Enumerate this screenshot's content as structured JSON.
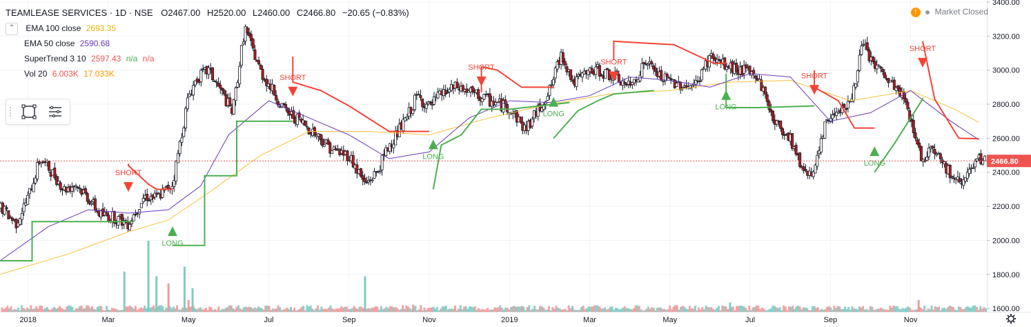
{
  "header": {
    "symbol": "TEAMLEASE SERVICES · 1D · NSE",
    "open": "O2467.00",
    "high": "H2520.00",
    "low": "L2460.00",
    "close": "C2466.80",
    "change": "−20.65 (−0.83%)"
  },
  "indicators": [
    {
      "name": "EMA 100 close",
      "values": [
        "2693.35"
      ],
      "color": "#e8b400"
    },
    {
      "name": "EMA 50 close",
      "values": [
        "2590.68"
      ],
      "color": "#673ab7"
    },
    {
      "name": "SuperTrend 3 10",
      "values": [
        "2597.43",
        "n/a",
        "n/a"
      ],
      "colors": [
        "#ef5350",
        "#4caf50",
        "#ef5350"
      ]
    },
    {
      "name": "Vol 20",
      "values": [
        "6.003K",
        "17.033K"
      ],
      "colors": [
        "#ef5350",
        "#ff9800"
      ]
    }
  ],
  "market_status": {
    "warning": "!",
    "label": "Market Closed"
  },
  "toolbar": {
    "icons": [
      "drag-handle-icon",
      "rectangle-select-icon",
      "menu-lines-icon"
    ]
  },
  "colors": {
    "up": "#26a69a",
    "down": "#ef5350",
    "candle_body_up": "#ffffff",
    "candle_border": "#131722",
    "ema100": "#f6c23e",
    "ema50": "#673ab7",
    "st_up": "#4caf50",
    "st_down": "#f44336",
    "vol_up": "#80cbc4",
    "vol_down": "#ef9a9a",
    "last_price_bg": "#ef5350"
  },
  "chart_data": {
    "type": "candlestick",
    "title": "TEAMLEASE SERVICES · 1D · NSE",
    "x_ticks": [
      "2018",
      "Mar",
      "May",
      "Jul",
      "Sep",
      "Nov",
      "2019",
      "Mar",
      "May",
      "Jul",
      "Sep",
      "Nov"
    ],
    "x_tick_months": [
      0,
      2,
      4,
      6,
      8,
      10,
      12,
      14,
      16,
      18,
      20,
      22
    ],
    "x_range_months": [
      -0.7,
      23.9
    ],
    "y_ticks": [
      "3400.00",
      "3200.00",
      "3000.00",
      "2800.00",
      "2600.00",
      "2400.00",
      "2200.00",
      "2000.00",
      "1800.00",
      "1600.00"
    ],
    "ylim": [
      1560,
      3400
    ],
    "last_price": "2466.80",
    "price_path_months": [
      -0.7,
      -0.3,
      0.0,
      0.3,
      0.6,
      0.9,
      1.2,
      1.5,
      1.8,
      2.1,
      2.5,
      2.9,
      3.2,
      3.6,
      4.0,
      4.2,
      4.5,
      4.8,
      5.1,
      5.4,
      5.8,
      6.1,
      6.4,
      6.8,
      7.2,
      7.6,
      8.0,
      8.4,
      8.7,
      9.0,
      9.4,
      9.7,
      10.0,
      10.3,
      10.7,
      11.0,
      11.5,
      12.0,
      12.4,
      12.7,
      13.0,
      13.3,
      13.6,
      13.9,
      14.2,
      14.6,
      15.0,
      15.4,
      15.8,
      16.2,
      16.6,
      17.0,
      17.4,
      17.8,
      18.2,
      18.6,
      19.0,
      19.3,
      19.6,
      19.9,
      20.2,
      20.5,
      20.8,
      21.1,
      21.5,
      21.8,
      22.1,
      22.3,
      22.5,
      22.8,
      23.1,
      23.4,
      23.7
    ],
    "price_path_values": [
      2200,
      2100,
      2250,
      2480,
      2400,
      2300,
      2330,
      2250,
      2150,
      2140,
      2100,
      2260,
      2250,
      2330,
      2850,
      2950,
      3000,
      2880,
      2750,
      3250,
      2990,
      2880,
      2760,
      2700,
      2620,
      2530,
      2500,
      2330,
      2400,
      2560,
      2700,
      2850,
      2780,
      2860,
      2900,
      2870,
      2820,
      2780,
      2650,
      2760,
      2880,
      3100,
      2920,
      2980,
      3000,
      2960,
      2900,
      3050,
      2950,
      2920,
      2900,
      3080,
      3020,
      3000,
      2960,
      2700,
      2600,
      2420,
      2400,
      2700,
      2780,
      2800,
      3150,
      3030,
      2920,
      2850,
      2640,
      2450,
      2570,
      2460,
      2340,
      2380,
      2467
    ],
    "ema100_months": [
      -0.7,
      1.0,
      2.5,
      3.5,
      4.5,
      5.8,
      7.0,
      8.5,
      10.0,
      11.5,
      13.0,
      14.5,
      16.0,
      17.5,
      19.0,
      20.5,
      22.0,
      23.1,
      23.7
    ],
    "ema100_values": [
      1800,
      1920,
      2050,
      2120,
      2280,
      2500,
      2640,
      2640,
      2620,
      2720,
      2800,
      2860,
      2880,
      2930,
      2940,
      2820,
      2880,
      2770,
      2693
    ],
    "ema50_months": [
      -0.7,
      0.5,
      1.5,
      2.5,
      3.5,
      4.3,
      5.0,
      6.0,
      7.0,
      8.0,
      9.0,
      10.0,
      11.0,
      12.0,
      13.0,
      14.0,
      15.0,
      16.0,
      17.0,
      18.0,
      19.0,
      20.0,
      21.0,
      22.0,
      23.0,
      23.7
    ],
    "ema50_values": [
      1880,
      2080,
      2180,
      2160,
      2180,
      2320,
      2620,
      2820,
      2720,
      2620,
      2480,
      2520,
      2720,
      2820,
      2810,
      2850,
      2960,
      2940,
      2900,
      2980,
      2960,
      2700,
      2750,
      2880,
      2700,
      2591
    ],
    "supertrend_up": [
      {
        "m": [
          -0.7,
          0.1,
          0.1,
          2.6
        ],
        "v": [
          1880,
          1880,
          2110,
          2110
        ]
      },
      {
        "m": [
          3.6,
          4.4,
          4.4,
          5.2,
          5.2,
          6.6
        ],
        "v": [
          1970,
          1970,
          2380,
          2380,
          2700,
          2700
        ]
      },
      {
        "m": [
          10.1,
          10.3,
          10.8,
          11.3,
          12.0,
          13.5
        ],
        "v": [
          2300,
          2560,
          2620,
          2770,
          2770,
          2810
        ]
      },
      {
        "m": [
          13.1,
          13.7,
          14.2,
          14.6,
          15.6
        ],
        "v": [
          2600,
          2760,
          2820,
          2860,
          2880
        ]
      },
      {
        "m": [
          17.4,
          17.4,
          18.2,
          19.6
        ],
        "v": [
          2980,
          2780,
          2780,
          2790
        ]
      },
      {
        "m": [
          21.1,
          21.6,
          22.3,
          22.3
        ],
        "v": [
          2400,
          2570,
          2830,
          2820
        ]
      }
    ],
    "supertrend_down": [
      {
        "m": [
          2.5,
          2.5,
          3.0,
          3.2,
          3.6
        ],
        "v": [
          2450,
          2440,
          2330,
          2300,
          2300
        ]
      },
      {
        "m": [
          6.6,
          6.6,
          7.3,
          8.0,
          9.0,
          10.0
        ],
        "v": [
          3080,
          2930,
          2880,
          2790,
          2640,
          2640
        ]
      },
      {
        "m": [
          11.3,
          11.3,
          11.7,
          12.3,
          13.1
        ],
        "v": [
          2870,
          3020,
          3000,
          2900,
          2900
        ]
      },
      {
        "m": [
          14.6,
          14.6,
          15.3,
          16.1,
          17.1,
          17.4
        ],
        "v": [
          3060,
          3170,
          3160,
          3150,
          3040,
          3040
        ]
      },
      {
        "m": [
          19.6,
          19.6,
          20.2,
          20.6,
          21.1
        ],
        "v": [
          3000,
          2900,
          2820,
          2660,
          2660
        ]
      },
      {
        "m": [
          22.3,
          22.6,
          23.2,
          23.7
        ],
        "v": [
          3170,
          2830,
          2600,
          2597
        ]
      }
    ],
    "signals": [
      {
        "type": "SHORT",
        "m": 2.5,
        "v": 2310
      },
      {
        "type": "LONG",
        "m": 3.6,
        "v": 2050
      },
      {
        "type": "SHORT",
        "m": 6.6,
        "v": 2870
      },
      {
        "type": "LONG",
        "m": 10.1,
        "v": 2560
      },
      {
        "type": "SHORT",
        "m": 11.3,
        "v": 2930
      },
      {
        "type": "LONG",
        "m": 13.1,
        "v": 2810
      },
      {
        "type": "SHORT",
        "m": 14.6,
        "v": 2960
      },
      {
        "type": "LONG",
        "m": 17.4,
        "v": 2850
      },
      {
        "type": "SHORT",
        "m": 19.6,
        "v": 2880
      },
      {
        "type": "LONG",
        "m": 21.1,
        "v": 2520
      },
      {
        "type": "SHORT",
        "m": 22.3,
        "v": 3040
      }
    ],
    "volume_spikes": [
      {
        "m": 2.4,
        "v": 17,
        "up": true
      },
      {
        "m": 3.0,
        "v": 30,
        "up": true
      },
      {
        "m": 3.2,
        "v": 15,
        "up": true
      },
      {
        "m": 3.5,
        "v": 12,
        "up": false
      },
      {
        "m": 3.9,
        "v": 19,
        "up": true
      },
      {
        "m": 4.0,
        "v": 5,
        "up": false
      },
      {
        "m": 4.1,
        "v": 10,
        "up": true
      },
      {
        "m": 8.4,
        "v": 15,
        "up": true
      },
      {
        "m": 9.6,
        "v": 3,
        "up": false
      },
      {
        "m": 17.5,
        "v": 4,
        "up": true
      },
      {
        "m": 22.2,
        "v": 5,
        "up": false
      }
    ],
    "volume_ylim": [
      0,
      32
    ]
  }
}
